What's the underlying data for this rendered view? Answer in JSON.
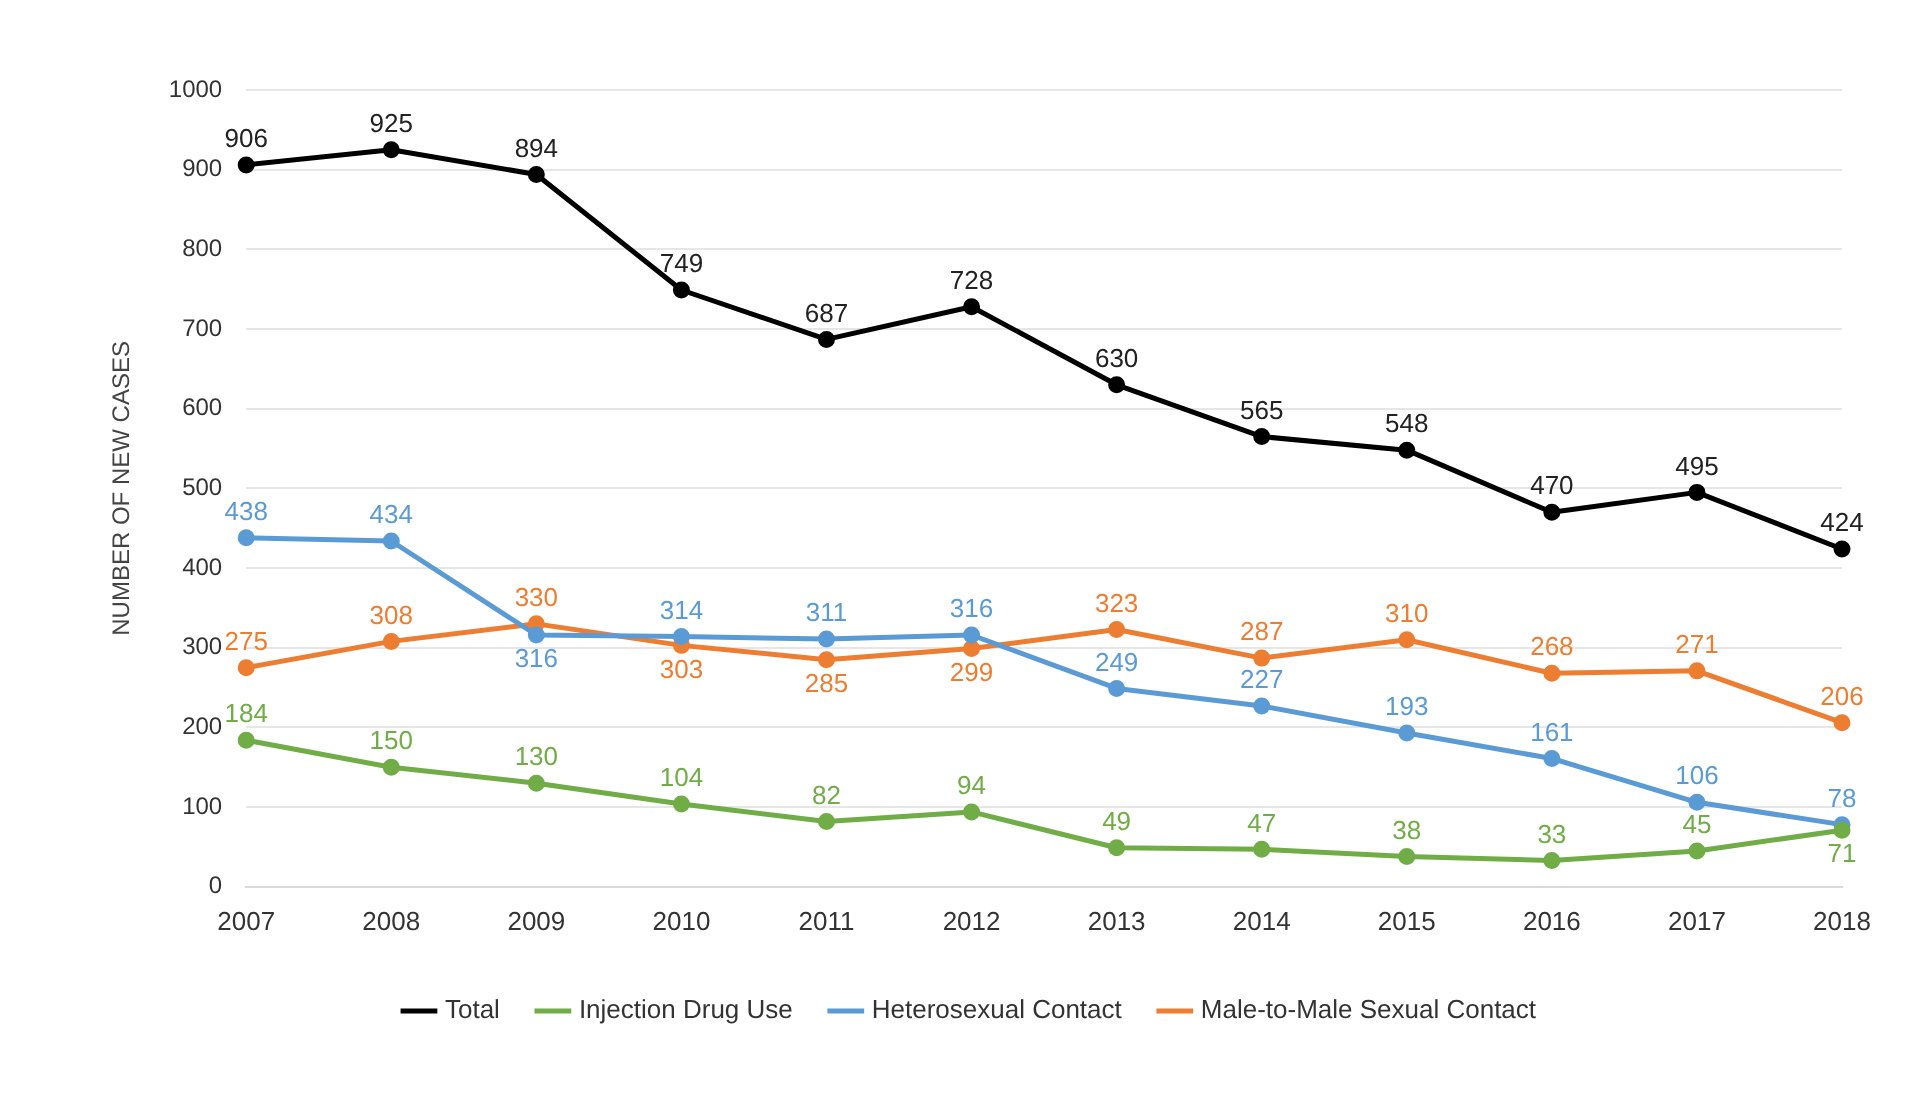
{
  "chart_data": {
    "type": "line",
    "ylabel": "NUMBER OF NEW CASES",
    "categories": [
      "2007",
      "2008",
      "2009",
      "2010",
      "2011",
      "2012",
      "2013",
      "2014",
      "2015",
      "2016",
      "2017",
      "2018"
    ],
    "series": [
      {
        "name": "Total",
        "color": "#000000",
        "values": [
          906,
          925,
          894,
          749,
          687,
          728,
          630,
          565,
          548,
          470,
          495,
          424
        ]
      },
      {
        "name": "Injection Drug Use",
        "color": "#70ad47",
        "values": [
          184,
          150,
          130,
          104,
          82,
          94,
          49,
          47,
          38,
          33,
          45,
          71
        ]
      },
      {
        "name": "Heterosexual Contact",
        "color": "#5b9bd5",
        "values": [
          438,
          434,
          316,
          314,
          311,
          316,
          249,
          227,
          193,
          161,
          106,
          78
        ]
      },
      {
        "name": "Male-to-Male Sexual Contact",
        "color": "#ed7d31",
        "values": [
          275,
          308,
          330,
          303,
          285,
          299,
          323,
          287,
          310,
          268,
          271,
          206
        ]
      }
    ],
    "ylim": [
      0,
      1000
    ],
    "yticks": [
      0,
      100,
      200,
      300,
      400,
      500,
      600,
      700,
      800,
      900,
      1000
    ],
    "grid": "y",
    "legend": "bottom",
    "marker": "circle",
    "line_style": "solid",
    "data_labels": true
  }
}
